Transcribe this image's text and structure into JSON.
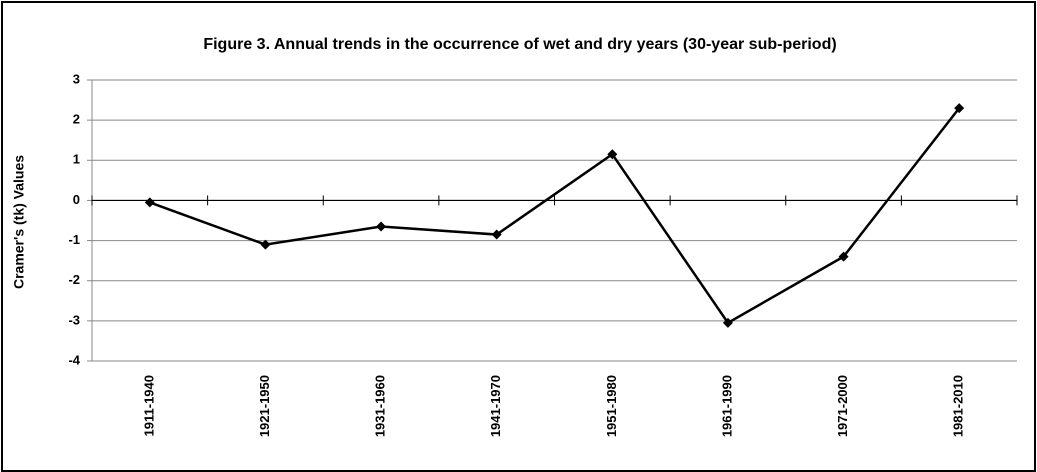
{
  "chart_data": {
    "type": "line",
    "title": "Figure 3. Annual trends in the occurrence of wet and dry years (30-year sub-period)",
    "y_label": "Cramer's (tk) Values",
    "categories": [
      "1911-1940",
      "1921-1950",
      "1931-1960",
      "1941-1970",
      "1951-1980",
      "1961-1990",
      "1971-2000",
      "1981-2010"
    ],
    "values": [
      -0.05,
      -1.1,
      -0.65,
      -0.85,
      1.15,
      -3.05,
      -1.4,
      2.3
    ],
    "color": "#000000",
    "ylim": [
      -4,
      3
    ],
    "yticks": [
      -4,
      -3,
      -2,
      -1,
      0,
      1,
      2,
      3
    ],
    "grid": true
  }
}
